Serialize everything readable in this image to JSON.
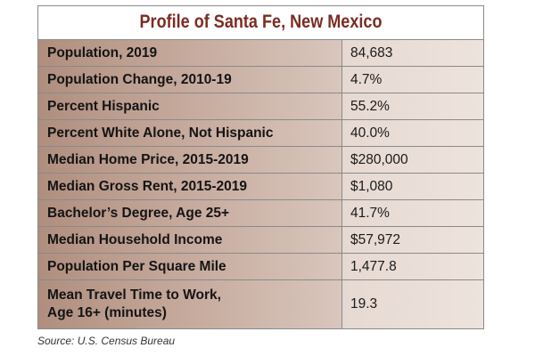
{
  "title": "Profile of Santa Fe, New Mexico",
  "rows": [
    {
      "label": "Population, 2019",
      "value": "84,683"
    },
    {
      "label": "Population Change, 2010-19",
      "value": "4.7%"
    },
    {
      "label": "Percent Hispanic",
      "value": "55.2%"
    },
    {
      "label": "Percent White Alone, Not Hispanic",
      "value": "40.0%"
    },
    {
      "label": "Median Home Price, 2015-2019",
      "value": "$280,000"
    },
    {
      "label": "Median Gross Rent, 2015-2019",
      "value": "$1,080"
    },
    {
      "label": "Bachelor’s Degree, Age 25+",
      "value": "41.7%"
    },
    {
      "label": "Median Household Income",
      "value": "$57,972"
    },
    {
      "label": "Population Per Square Mile",
      "value": "1,477.8"
    },
    {
      "label": "Mean Travel Time to Work,\nAge 16+ (minutes)",
      "value": "19.3"
    }
  ],
  "source": "Source: U.S. Census Bureau",
  "colors": {
    "title": "#7b2c22",
    "label_bg": "#c2a597",
    "value_bg": "#ebe1db",
    "border": "#8a8a8a"
  }
}
